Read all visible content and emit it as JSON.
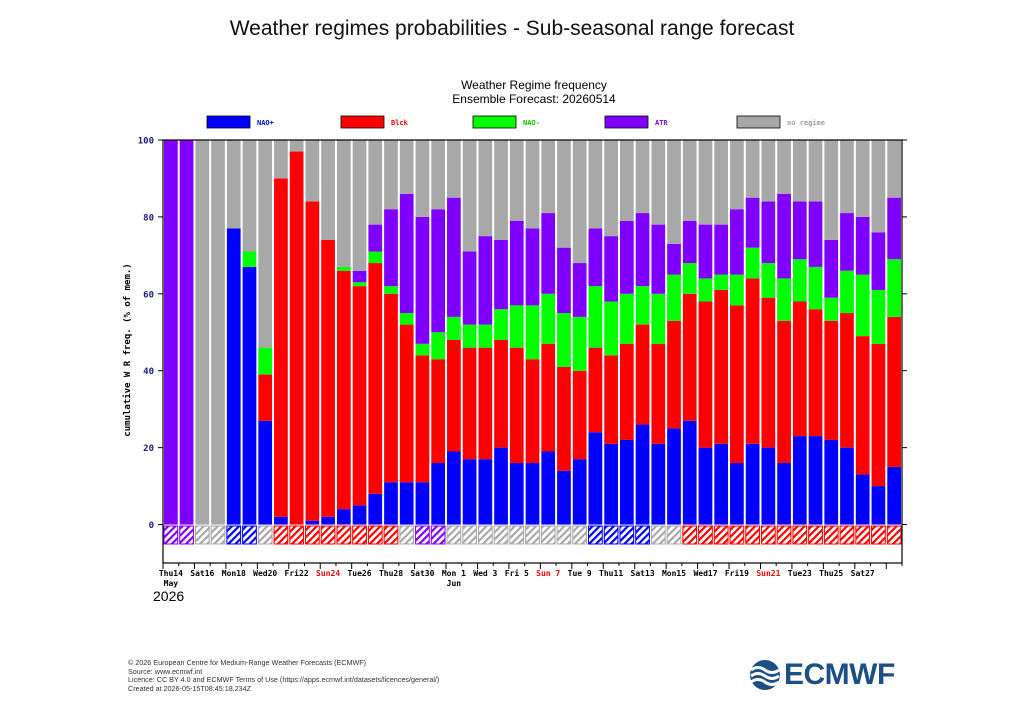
{
  "page": {
    "title": "Weather regimes probabilities - Sub-seasonal range forecast",
    "footer": [
      "© 2026 European Centre for Medium-Range Weather Forecasts (ECMWF)",
      "Source: www.ecmwf.int",
      "Licence: CC BY 4.0 and ECMWF Terms of Use (https://apps.ecmwf.int/datasets/licences/general/)",
      "Created at 2026-05-15T08:45:18.234Z"
    ],
    "logo_text": "ECMWF"
  },
  "chart_data": {
    "type": "bar",
    "stacked": true,
    "title": "Weather Regime frequency",
    "subtitle": "Ensemble Forecast: 20260514",
    "ylabel": "cumulative W R freq. (% of mem.)",
    "ylim": [
      -10,
      100
    ],
    "yticks": [
      0,
      20,
      40,
      60,
      80,
      100
    ],
    "grid": false,
    "legend_position": "top",
    "x_tick_labels": [
      {
        "index": 0,
        "label": "Thu14",
        "color": "#000000"
      },
      {
        "index": 2,
        "label": "Sat16",
        "color": "#000000"
      },
      {
        "index": 4,
        "label": "Mon18",
        "color": "#000000"
      },
      {
        "index": 6,
        "label": "Wed20",
        "color": "#000000"
      },
      {
        "index": 8,
        "label": "Fri22",
        "color": "#000000"
      },
      {
        "index": 10,
        "label": "Sun24",
        "color": "#ff0000"
      },
      {
        "index": 12,
        "label": "Tue26",
        "color": "#000000"
      },
      {
        "index": 14,
        "label": "Thu28",
        "color": "#000000"
      },
      {
        "index": 16,
        "label": "Sat30",
        "color": "#000000"
      },
      {
        "index": 18,
        "label": "Mon 1",
        "color": "#000000"
      },
      {
        "index": 20,
        "label": "Wed 3",
        "color": "#000000"
      },
      {
        "index": 22,
        "label": "Fri 5",
        "color": "#000000"
      },
      {
        "index": 24,
        "label": "Sun 7",
        "color": "#ff0000"
      },
      {
        "index": 26,
        "label": "Tue 9",
        "color": "#000000"
      },
      {
        "index": 28,
        "label": "Thu11",
        "color": "#000000"
      },
      {
        "index": 30,
        "label": "Sat13",
        "color": "#000000"
      },
      {
        "index": 32,
        "label": "Mon15",
        "color": "#000000"
      },
      {
        "index": 34,
        "label": "Wed17",
        "color": "#000000"
      },
      {
        "index": 36,
        "label": "Fri19",
        "color": "#000000"
      },
      {
        "index": 38,
        "label": "Sun21",
        "color": "#ff0000"
      },
      {
        "index": 40,
        "label": "Tue23",
        "color": "#000000"
      },
      {
        "index": 42,
        "label": "Thu25",
        "color": "#000000"
      },
      {
        "index": 44,
        "label": "Sat27",
        "color": "#000000"
      }
    ],
    "month_labels": [
      {
        "index": 0,
        "label": "May"
      },
      {
        "index": 18,
        "label": "Jun"
      }
    ],
    "year_label": "2026",
    "series": [
      {
        "name": "NAO+",
        "color": "#0000ff",
        "values": [
          0,
          0,
          0,
          0,
          77,
          67,
          27,
          2,
          0,
          1,
          2,
          4,
          5,
          8,
          11,
          11,
          11,
          16,
          19,
          17,
          17,
          20,
          16,
          16,
          19,
          14,
          17,
          24,
          21,
          22,
          26,
          21,
          25,
          27,
          20,
          21,
          16,
          21,
          20,
          16,
          23,
          23,
          22,
          20,
          13,
          10,
          15
        ]
      },
      {
        "name": "Blck",
        "color": "#ff0000",
        "values": [
          0,
          0,
          0,
          0,
          0,
          0,
          12,
          88,
          97,
          83,
          72,
          62,
          57,
          60,
          49,
          41,
          33,
          27,
          29,
          29,
          29,
          28,
          30,
          27,
          28,
          27,
          23,
          22,
          23,
          25,
          26,
          26,
          28,
          33,
          38,
          40,
          41,
          43,
          39,
          37,
          35,
          33,
          31,
          35,
          36,
          37,
          39
        ]
      },
      {
        "name": "NAO-",
        "color": "#00ff00",
        "values": [
          0,
          0,
          0,
          0,
          0,
          4,
          7,
          0,
          0,
          0,
          0,
          1,
          1,
          3,
          2,
          3,
          3,
          7,
          6,
          6,
          6,
          8,
          11,
          14,
          13,
          14,
          14,
          16,
          14,
          13,
          10,
          13,
          12,
          8,
          6,
          4,
          8,
          8,
          9,
          11,
          11,
          11,
          6,
          11,
          16,
          14,
          15
        ]
      },
      {
        "name": "ATR",
        "color": "#8000ff",
        "values": [
          100,
          100,
          0,
          0,
          0,
          0,
          0,
          0,
          0,
          0,
          0,
          0,
          3,
          7,
          20,
          31,
          33,
          32,
          31,
          19,
          23,
          18,
          22,
          20,
          21,
          17,
          14,
          15,
          17,
          19,
          19,
          18,
          8,
          11,
          14,
          13,
          17,
          13,
          16,
          22,
          15,
          17,
          15,
          15,
          15,
          15,
          16
        ]
      },
      {
        "name": "no regime",
        "color": "#a8a8a8",
        "values": [
          0,
          0,
          100,
          100,
          23,
          29,
          54,
          10,
          3,
          16,
          26,
          33,
          34,
          22,
          18,
          14,
          20,
          18,
          15,
          29,
          25,
          26,
          21,
          23,
          19,
          28,
          32,
          23,
          25,
          21,
          19,
          22,
          27,
          21,
          22,
          22,
          18,
          15,
          16,
          14,
          16,
          16,
          26,
          19,
          20,
          24,
          15
        ]
      }
    ],
    "dominant_regime": [
      "ATR",
      "ATR",
      "no regime",
      "no regime",
      "NAO+",
      "NAO+",
      "no regime",
      "Blck",
      "Blck",
      "Blck",
      "Blck",
      "Blck",
      "Blck",
      "Blck",
      "Blck",
      "no regime",
      "ATR",
      "ATR",
      "no regime",
      "no regime",
      "no regime",
      "no regime",
      "no regime",
      "no regime",
      "no regime",
      "no regime",
      "no regime",
      "NAO+",
      "NAO+",
      "NAO+",
      "NAO+",
      "no regime",
      "no regime",
      "Blck",
      "Blck",
      "Blck",
      "Blck",
      "Blck",
      "Blck",
      "Blck",
      "Blck",
      "Blck",
      "Blck",
      "Blck",
      "Blck",
      "Blck",
      "Blck"
    ]
  }
}
